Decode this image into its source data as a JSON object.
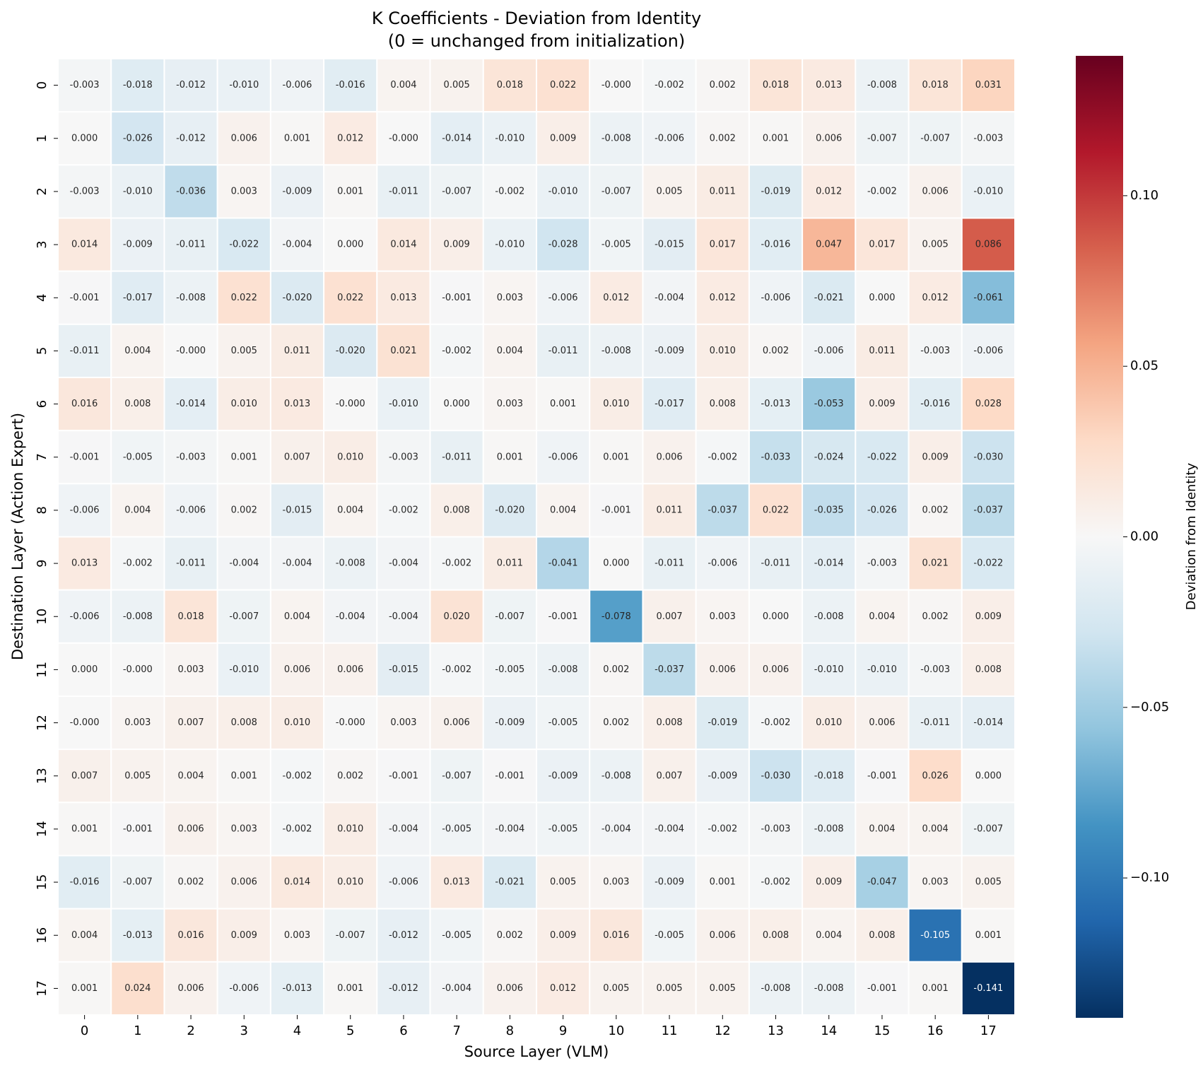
{
  "chart_data": {
    "type": "heatmap",
    "title": "K Coefficients - Deviation from Identity",
    "subtitle": "(0 = unchanged from initialization)",
    "xlabel": "Source Layer (VLM)",
    "ylabel": "Destination Layer (Action Expert)",
    "colorbar_label": "Deviation from Identity",
    "x": [
      0,
      1,
      2,
      3,
      4,
      5,
      6,
      7,
      8,
      9,
      10,
      11,
      12,
      13,
      14,
      15,
      16,
      17
    ],
    "y": [
      0,
      1,
      2,
      3,
      4,
      5,
      6,
      7,
      8,
      9,
      10,
      11,
      12,
      13,
      14,
      15,
      16,
      17
    ],
    "colorscale": [
      "#053061",
      "#2166ac",
      "#4393c3",
      "#92c5de",
      "#d1e5f0",
      "#f7f7f7",
      "#fddbc7",
      "#f4a582",
      "#d6604d",
      "#b2182b",
      "#67001f"
    ],
    "clim": [
      -0.141,
      0.141
    ],
    "cticks": [
      {
        "value": -0.1,
        "label": "−0.10"
      },
      {
        "value": -0.05,
        "label": "−0.05"
      },
      {
        "value": 0,
        "label": "0.00"
      },
      {
        "value": 0.05,
        "label": "0.05"
      },
      {
        "value": 0.1,
        "label": "0.10"
      }
    ],
    "values": [
      [
        -0.003,
        -0.018,
        -0.012,
        -0.01,
        -0.006,
        -0.016,
        0.004,
        0.005,
        0.018,
        0.022,
        -0.0,
        -0.002,
        0.002,
        0.018,
        0.013,
        -0.008,
        0.018,
        0.031
      ],
      [
        0.0,
        -0.026,
        -0.012,
        0.006,
        0.001,
        0.012,
        -0.0,
        -0.014,
        -0.01,
        0.009,
        -0.008,
        -0.006,
        0.002,
        0.001,
        0.006,
        -0.007,
        -0.007,
        -0.003
      ],
      [
        -0.003,
        -0.01,
        -0.036,
        0.003,
        -0.009,
        0.001,
        -0.011,
        -0.007,
        -0.002,
        -0.01,
        -0.007,
        0.005,
        0.011,
        -0.019,
        0.012,
        -0.002,
        0.006,
        -0.01
      ],
      [
        0.014,
        -0.009,
        -0.011,
        -0.022,
        -0.004,
        0.0,
        0.014,
        0.009,
        -0.01,
        -0.028,
        -0.005,
        -0.015,
        0.017,
        -0.016,
        0.047,
        0.017,
        0.005,
        0.086
      ],
      [
        -0.001,
        -0.017,
        -0.008,
        0.022,
        -0.02,
        0.022,
        0.013,
        -0.001,
        0.003,
        -0.006,
        0.012,
        -0.004,
        0.012,
        -0.006,
        -0.021,
        0.0,
        0.012,
        -0.061
      ],
      [
        -0.011,
        0.004,
        -0.0,
        0.005,
        0.011,
        -0.02,
        0.021,
        -0.002,
        0.004,
        -0.011,
        -0.008,
        -0.009,
        0.01,
        0.002,
        -0.006,
        0.011,
        -0.003,
        -0.006
      ],
      [
        0.016,
        0.008,
        -0.014,
        0.01,
        0.013,
        -0.0,
        -0.01,
        0.0,
        0.003,
        0.001,
        0.01,
        -0.017,
        0.008,
        -0.013,
        -0.053,
        0.009,
        -0.016,
        0.028
      ],
      [
        -0.001,
        -0.005,
        -0.003,
        0.001,
        0.007,
        0.01,
        -0.003,
        -0.011,
        0.001,
        -0.006,
        0.001,
        0.006,
        -0.002,
        -0.033,
        -0.024,
        -0.022,
        0.009,
        -0.03
      ],
      [
        -0.006,
        0.004,
        -0.006,
        0.002,
        -0.015,
        0.004,
        -0.002,
        0.008,
        -0.02,
        0.004,
        -0.001,
        0.011,
        -0.037,
        0.022,
        -0.035,
        -0.026,
        0.002,
        -0.037
      ],
      [
        0.013,
        -0.002,
        -0.011,
        -0.004,
        -0.004,
        -0.008,
        -0.004,
        -0.002,
        0.011,
        -0.041,
        0.0,
        -0.011,
        -0.006,
        -0.011,
        -0.014,
        -0.003,
        0.021,
        -0.022
      ],
      [
        -0.006,
        -0.008,
        0.018,
        -0.007,
        0.004,
        -0.004,
        -0.004,
        0.02,
        -0.007,
        -0.001,
        -0.078,
        0.007,
        0.003,
        0.0,
        -0.008,
        0.004,
        0.002,
        0.009
      ],
      [
        0.0,
        -0.0,
        0.003,
        -0.01,
        0.006,
        0.006,
        -0.015,
        -0.002,
        -0.005,
        -0.008,
        0.002,
        -0.037,
        0.006,
        0.006,
        -0.01,
        -0.01,
        -0.003,
        0.008
      ],
      [
        -0.0,
        0.003,
        0.007,
        0.008,
        0.01,
        -0.0,
        0.003,
        0.006,
        -0.009,
        -0.005,
        0.002,
        0.008,
        -0.019,
        -0.002,
        0.01,
        0.006,
        -0.011,
        -0.014
      ],
      [
        0.007,
        0.005,
        0.004,
        0.001,
        -0.002,
        0.002,
        -0.001,
        -0.007,
        -0.001,
        -0.009,
        -0.008,
        0.007,
        -0.009,
        -0.03,
        -0.018,
        -0.001,
        0.026,
        0.0
      ],
      [
        0.001,
        -0.001,
        0.006,
        0.003,
        -0.002,
        0.01,
        -0.004,
        -0.005,
        -0.004,
        -0.005,
        -0.004,
        -0.004,
        -0.002,
        -0.003,
        -0.008,
        0.004,
        0.004,
        -0.007
      ],
      [
        -0.016,
        -0.007,
        0.002,
        0.006,
        0.014,
        0.01,
        -0.006,
        0.013,
        -0.021,
        0.005,
        0.003,
        -0.009,
        0.001,
        -0.002,
        0.009,
        -0.047,
        0.003,
        0.005
      ],
      [
        0.004,
        -0.013,
        0.016,
        0.009,
        0.003,
        -0.007,
        -0.012,
        -0.005,
        0.002,
        0.009,
        0.016,
        -0.005,
        0.006,
        0.008,
        0.004,
        0.008,
        -0.105,
        0.001
      ],
      [
        0.001,
        0.024,
        0.006,
        -0.006,
        -0.013,
        0.001,
        -0.012,
        -0.004,
        0.006,
        0.012,
        0.005,
        0.005,
        0.005,
        -0.008,
        -0.008,
        -0.001,
        0.001,
        -0.141
      ]
    ],
    "value_labels": [
      [
        "-0.003",
        "-0.018",
        "-0.012",
        "-0.010",
        "-0.006",
        "-0.016",
        "0.004",
        "0.005",
        "0.018",
        "0.022",
        "-0.000",
        "-0.002",
        "0.002",
        "0.018",
        "0.013",
        "-0.008",
        "0.018",
        "0.031"
      ],
      [
        "0.000",
        "-0.026",
        "-0.012",
        "0.006",
        "0.001",
        "0.012",
        "-0.000",
        "-0.014",
        "-0.010",
        "0.009",
        "-0.008",
        "-0.006",
        "0.002",
        "0.001",
        "0.006",
        "-0.007",
        "-0.007",
        "-0.003"
      ],
      [
        "-0.003",
        "-0.010",
        "-0.036",
        "0.003",
        "-0.009",
        "0.001",
        "-0.011",
        "-0.007",
        "-0.002",
        "-0.010",
        "-0.007",
        "0.005",
        "0.011",
        "-0.019",
        "0.012",
        "-0.002",
        "0.006",
        "-0.010"
      ],
      [
        "0.014",
        "-0.009",
        "-0.011",
        "-0.022",
        "-0.004",
        "0.000",
        "0.014",
        "0.009",
        "-0.010",
        "-0.028",
        "-0.005",
        "-0.015",
        "0.017",
        "-0.016",
        "0.047",
        "0.017",
        "0.005",
        "0.086"
      ],
      [
        "-0.001",
        "-0.017",
        "-0.008",
        "0.022",
        "-0.020",
        "0.022",
        "0.013",
        "-0.001",
        "0.003",
        "-0.006",
        "0.012",
        "-0.004",
        "0.012",
        "-0.006",
        "-0.021",
        "0.000",
        "0.012",
        "-0.061"
      ],
      [
        "-0.011",
        "0.004",
        "-0.000",
        "0.005",
        "0.011",
        "-0.020",
        "0.021",
        "-0.002",
        "0.004",
        "-0.011",
        "-0.008",
        "-0.009",
        "0.010",
        "0.002",
        "-0.006",
        "0.011",
        "-0.003",
        "-0.006"
      ],
      [
        "0.016",
        "0.008",
        "-0.014",
        "0.010",
        "0.013",
        "-0.000",
        "-0.010",
        "0.000",
        "0.003",
        "0.001",
        "0.010",
        "-0.017",
        "0.008",
        "-0.013",
        "-0.053",
        "0.009",
        "-0.016",
        "0.028"
      ],
      [
        "-0.001",
        "-0.005",
        "-0.003",
        "0.001",
        "0.007",
        "0.010",
        "-0.003",
        "-0.011",
        "0.001",
        "-0.006",
        "0.001",
        "0.006",
        "-0.002",
        "-0.033",
        "-0.024",
        "-0.022",
        "0.009",
        "-0.030"
      ],
      [
        "-0.006",
        "0.004",
        "-0.006",
        "0.002",
        "-0.015",
        "0.004",
        "-0.002",
        "0.008",
        "-0.020",
        "0.004",
        "-0.001",
        "0.011",
        "-0.037",
        "0.022",
        "-0.035",
        "-0.026",
        "0.002",
        "-0.037"
      ],
      [
        "0.013",
        "-0.002",
        "-0.011",
        "-0.004",
        "-0.004",
        "-0.008",
        "-0.004",
        "-0.002",
        "0.011",
        "-0.041",
        "0.000",
        "-0.011",
        "-0.006",
        "-0.011",
        "-0.014",
        "-0.003",
        "0.021",
        "-0.022"
      ],
      [
        "-0.006",
        "-0.008",
        "0.018",
        "-0.007",
        "0.004",
        "-0.004",
        "-0.004",
        "0.020",
        "-0.007",
        "-0.001",
        "-0.078",
        "0.007",
        "0.003",
        "0.000",
        "-0.008",
        "0.004",
        "0.002",
        "0.009"
      ],
      [
        "0.000",
        "-0.000",
        "0.003",
        "-0.010",
        "0.006",
        "0.006",
        "-0.015",
        "-0.002",
        "-0.005",
        "-0.008",
        "0.002",
        "-0.037",
        "0.006",
        "0.006",
        "-0.010",
        "-0.010",
        "-0.003",
        "0.008"
      ],
      [
        "-0.000",
        "0.003",
        "0.007",
        "0.008",
        "0.010",
        "-0.000",
        "0.003",
        "0.006",
        "-0.009",
        "-0.005",
        "0.002",
        "0.008",
        "-0.019",
        "-0.002",
        "0.010",
        "0.006",
        "-0.011",
        "-0.014"
      ],
      [
        "0.007",
        "0.005",
        "0.004",
        "0.001",
        "-0.002",
        "0.002",
        "-0.001",
        "-0.007",
        "-0.001",
        "-0.009",
        "-0.008",
        "0.007",
        "-0.009",
        "-0.030",
        "-0.018",
        "-0.001",
        "0.026",
        "0.000"
      ],
      [
        "0.001",
        "-0.001",
        "0.006",
        "0.003",
        "-0.002",
        "0.010",
        "-0.004",
        "-0.005",
        "-0.004",
        "-0.005",
        "-0.004",
        "-0.004",
        "-0.002",
        "-0.003",
        "-0.008",
        "0.004",
        "0.004",
        "-0.007"
      ],
      [
        "-0.016",
        "-0.007",
        "0.002",
        "0.006",
        "0.014",
        "0.010",
        "-0.006",
        "0.013",
        "-0.021",
        "0.005",
        "0.003",
        "-0.009",
        "0.001",
        "-0.002",
        "0.009",
        "-0.047",
        "0.003",
        "0.005"
      ],
      [
        "0.004",
        "-0.013",
        "0.016",
        "0.009",
        "0.003",
        "-0.007",
        "-0.012",
        "-0.005",
        "0.002",
        "0.009",
        "0.016",
        "-0.005",
        "0.006",
        "0.008",
        "0.004",
        "0.008",
        "-0.105",
        "0.001"
      ],
      [
        "0.001",
        "0.024",
        "0.006",
        "-0.006",
        "-0.013",
        "0.001",
        "-0.012",
        "-0.004",
        "0.006",
        "0.012",
        "0.005",
        "0.005",
        "0.005",
        "-0.008",
        "-0.008",
        "-0.001",
        "0.001",
        "-0.141"
      ]
    ]
  }
}
